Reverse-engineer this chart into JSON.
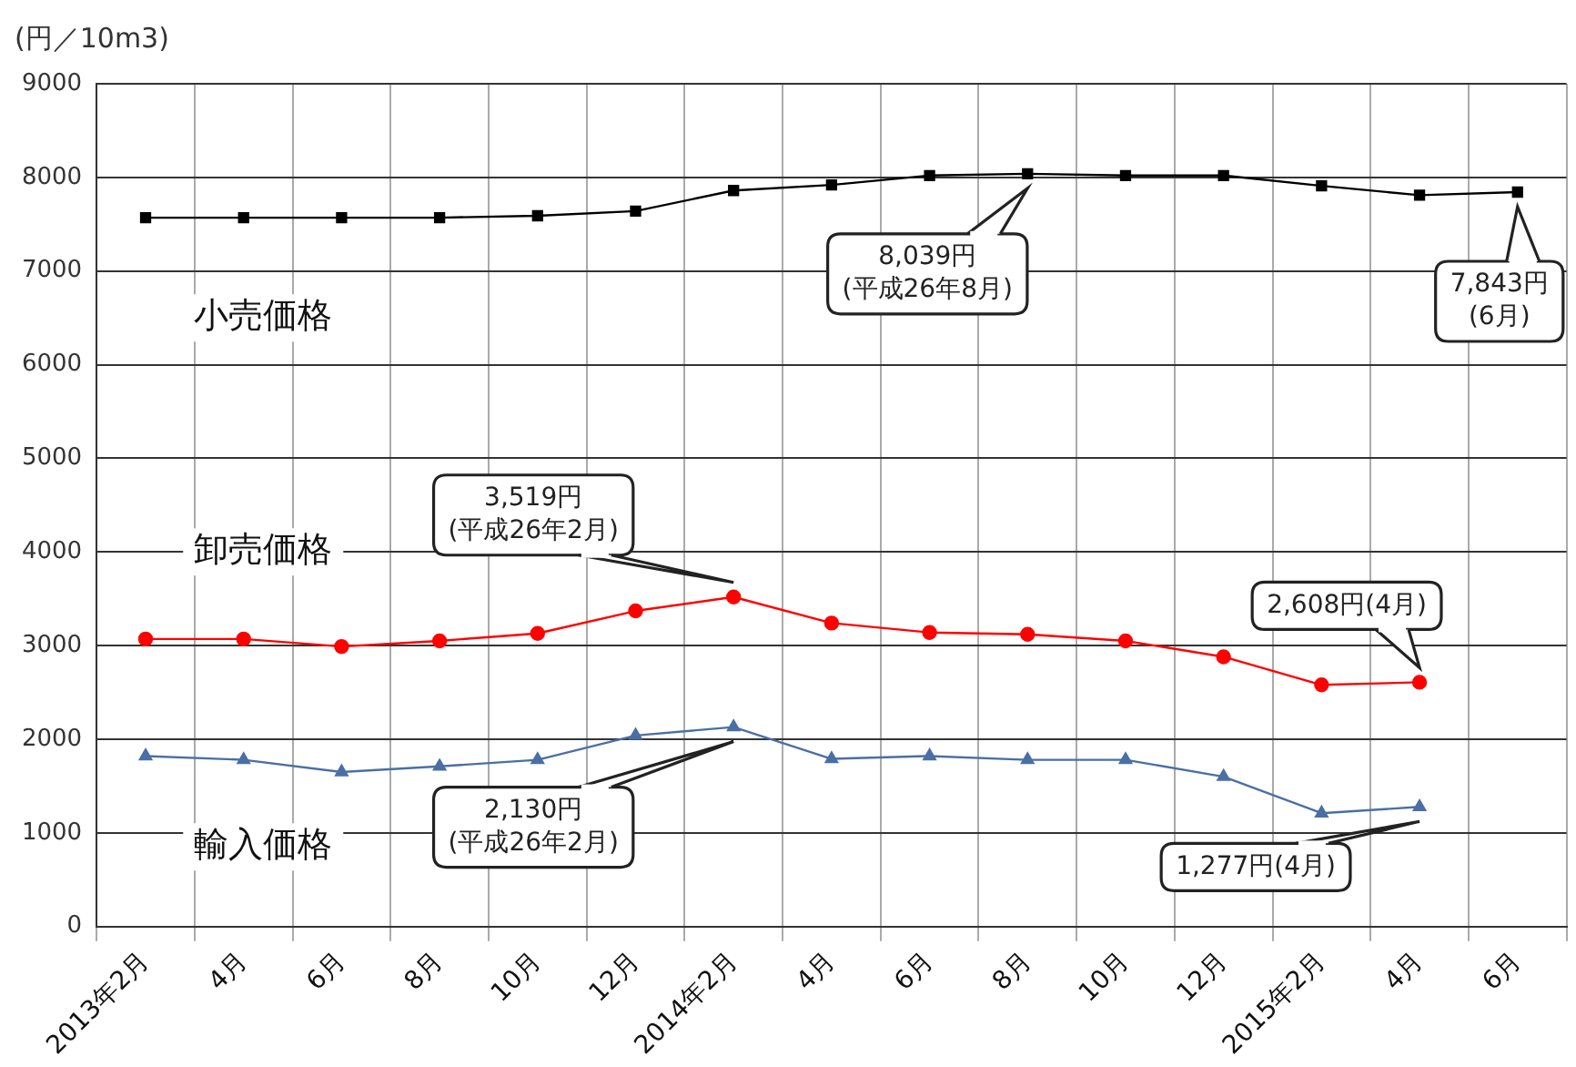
{
  "chart_data": {
    "type": "line",
    "ylabel": "(円／10m3)",
    "categories": [
      "2013年2月",
      "4月",
      "6月",
      "8月",
      "10月",
      "12月",
      "2014年2月",
      "4月",
      "6月",
      "8月",
      "10月",
      "12月",
      "2015年2月",
      "4月",
      "6月"
    ],
    "series": [
      {
        "name": "小売価格",
        "color": "#000000",
        "marker": "square",
        "values": [
          7570,
          7570,
          7570,
          7570,
          7590,
          7640,
          7860,
          7920,
          8020,
          8039,
          8020,
          8020,
          7910,
          7810,
          7843
        ],
        "value_labels": [
          null,
          null,
          null,
          null,
          null,
          null,
          null,
          null,
          null,
          "8,039円\n(平成26年8月)",
          null,
          null,
          null,
          null,
          "7,843円\n(6月)"
        ]
      },
      {
        "name": "卸売価格",
        "color": "#ff0000",
        "marker": "circle",
        "values": [
          3070,
          3070,
          2990,
          3050,
          3130,
          3370,
          3519,
          3240,
          3140,
          3120,
          3050,
          2880,
          2580,
          2608,
          null
        ],
        "value_labels": [
          null,
          null,
          null,
          null,
          null,
          null,
          "3,519円\n(平成26年2月)",
          null,
          null,
          null,
          null,
          null,
          null,
          "2,608円(4月)",
          null
        ]
      },
      {
        "name": "輸入価格",
        "color": "#4a6fa5",
        "marker": "triangle",
        "values": [
          1820,
          1780,
          1650,
          1710,
          1780,
          2040,
          2130,
          1790,
          1820,
          1780,
          1780,
          1600,
          1210,
          1277,
          null
        ],
        "value_labels": [
          null,
          null,
          null,
          null,
          null,
          null,
          "2,130円\n(平成26年2月)",
          null,
          null,
          null,
          null,
          null,
          null,
          "1,277円(4月)",
          null
        ]
      }
    ],
    "ylim": [
      0,
      9000
    ],
    "yticks": [
      0,
      1000,
      2000,
      3000,
      4000,
      5000,
      6000,
      7000,
      8000,
      9000
    ],
    "grid": true,
    "legend": false
  }
}
